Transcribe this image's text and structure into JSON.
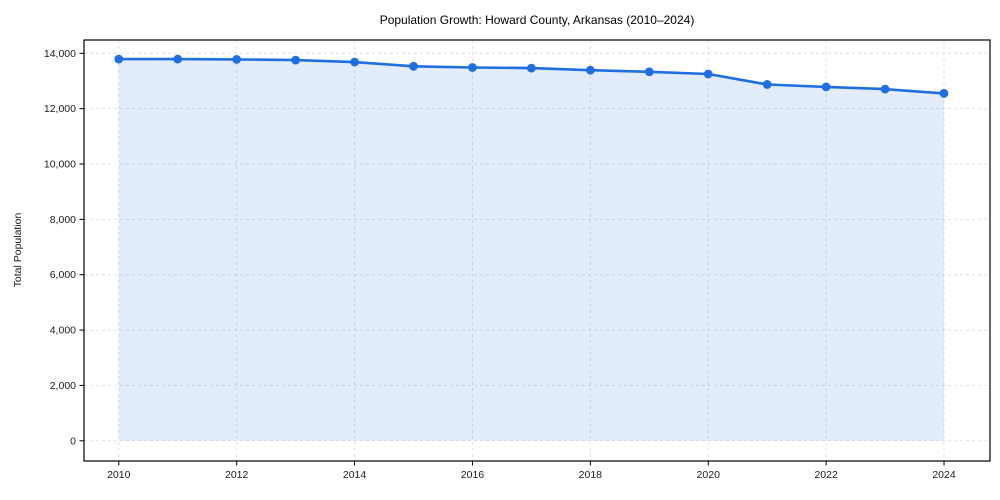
{
  "chart_data": {
    "type": "line",
    "title": "Population Growth: Howard County, Arkansas (2010–2024)",
    "xlabel": "",
    "ylabel": "Total Population",
    "x": [
      2010,
      2011,
      2012,
      2013,
      2014,
      2015,
      2016,
      2017,
      2018,
      2019,
      2020,
      2021,
      2022,
      2023,
      2024
    ],
    "series": [
      {
        "name": "Total Population",
        "values": [
          13789,
          13791,
          13780,
          13753,
          13683,
          13530,
          13487,
          13465,
          13390,
          13332,
          13250,
          12874,
          12786,
          12705,
          12550
        ]
      }
    ],
    "x_ticks": [
      2010,
      2012,
      2014,
      2016,
      2018,
      2020,
      2022,
      2024
    ],
    "y_ticks": [
      0,
      2000,
      4000,
      6000,
      8000,
      10000,
      12000,
      14000
    ],
    "xlim": [
      2009.41,
      2024.78
    ],
    "ylim": [
      -730,
      14480
    ],
    "grid": true,
    "legend_position": "none",
    "marker": "circle",
    "colors": {
      "line": "#1f6fe0",
      "marker": "#1f6fe0",
      "fill": "rgba(31,111,224,0.13)",
      "grid": "#d9d9d9",
      "axis": "#000000",
      "tick_label": "#1a1a1a",
      "title": "#000000",
      "background": "#ffffff"
    }
  }
}
